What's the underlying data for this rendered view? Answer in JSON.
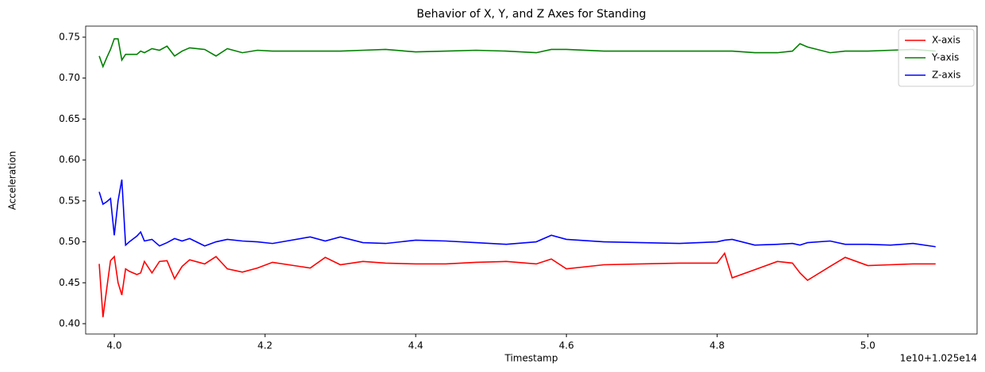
{
  "chart_data": {
    "type": "line",
    "title": "Behavior of X, Y, and Z Axes for Standing",
    "x_label": "Timestamp",
    "y_label": "Acceleration",
    "x_offset_label": "1e10+1.025e14",
    "legend": "upper right",
    "x": [
      3.98,
      3.985,
      3.99,
      3.995,
      4.0,
      4.005,
      4.01,
      4.015,
      4.02,
      4.03,
      4.035,
      4.04,
      4.05,
      4.06,
      4.07,
      4.08,
      4.09,
      4.1,
      4.12,
      4.135,
      4.15,
      4.17,
      4.19,
      4.21,
      4.26,
      4.28,
      4.3,
      4.33,
      4.36,
      4.4,
      4.44,
      4.48,
      4.52,
      4.56,
      4.58,
      4.6,
      4.65,
      4.7,
      4.75,
      4.8,
      4.81,
      4.82,
      4.85,
      4.88,
      4.9,
      4.91,
      4.92,
      4.95,
      4.97,
      5.0,
      5.03,
      5.06,
      5.09
    ],
    "series": [
      {
        "name": "X-axis",
        "color": "#ff0000",
        "values": [
          0.473,
          0.408,
          0.443,
          0.477,
          0.482,
          0.45,
          0.435,
          0.467,
          0.464,
          0.46,
          0.462,
          0.476,
          0.462,
          0.476,
          0.477,
          0.455,
          0.47,
          0.478,
          0.473,
          0.482,
          0.467,
          0.463,
          0.468,
          0.475,
          0.468,
          0.481,
          0.472,
          0.476,
          0.474,
          0.473,
          0.473,
          0.475,
          0.476,
          0.473,
          0.479,
          0.467,
          0.472,
          0.473,
          0.474,
          0.474,
          0.486,
          0.456,
          0.466,
          0.476,
          0.474,
          0.462,
          0.453,
          0.47,
          0.481,
          0.471,
          0.472,
          0.473,
          0.473
        ]
      },
      {
        "name": "Y-axis",
        "color": "#008000",
        "values": [
          0.727,
          0.714,
          0.725,
          0.735,
          0.748,
          0.748,
          0.722,
          0.729,
          0.729,
          0.729,
          0.733,
          0.731,
          0.736,
          0.734,
          0.739,
          0.727,
          0.733,
          0.737,
          0.735,
          0.727,
          0.736,
          0.731,
          0.734,
          0.733,
          0.733,
          0.733,
          0.733,
          0.734,
          0.735,
          0.732,
          0.733,
          0.734,
          0.733,
          0.731,
          0.735,
          0.735,
          0.733,
          0.733,
          0.733,
          0.733,
          0.733,
          0.733,
          0.731,
          0.731,
          0.733,
          0.742,
          0.738,
          0.731,
          0.733,
          0.733,
          0.734,
          0.735,
          0.733
        ]
      },
      {
        "name": "Z-axis",
        "color": "#0000ff",
        "values": [
          0.561,
          0.546,
          0.549,
          0.553,
          0.508,
          0.55,
          0.576,
          0.496,
          0.5,
          0.507,
          0.512,
          0.501,
          0.503,
          0.495,
          0.499,
          0.504,
          0.501,
          0.504,
          0.495,
          0.5,
          0.503,
          0.501,
          0.5,
          0.498,
          0.506,
          0.501,
          0.506,
          0.499,
          0.498,
          0.502,
          0.501,
          0.499,
          0.497,
          0.5,
          0.508,
          0.503,
          0.5,
          0.499,
          0.498,
          0.5,
          0.502,
          0.503,
          0.496,
          0.497,
          0.498,
          0.496,
          0.499,
          0.501,
          0.497,
          0.497,
          0.496,
          0.498,
          0.494
        ]
      }
    ],
    "xlim": [
      3.962,
      5.145
    ],
    "xticks": [
      {
        "value": 4.0,
        "label": "4.0"
      },
      4.2,
      4.4,
      4.6,
      4.8,
      {
        "value": 5.0,
        "label": "5.0"
      }
    ],
    "ylim": [
      0.3874,
      0.7635
    ],
    "yticks": [
      {
        "value": 0.4,
        "label": "0.40"
      },
      0.45,
      {
        "value": 0.5,
        "label": "0.50"
      },
      0.55,
      {
        "value": 0.6,
        "label": "0.60"
      },
      0.65,
      {
        "value": 0.7,
        "label": "0.70"
      },
      0.75
    ]
  }
}
